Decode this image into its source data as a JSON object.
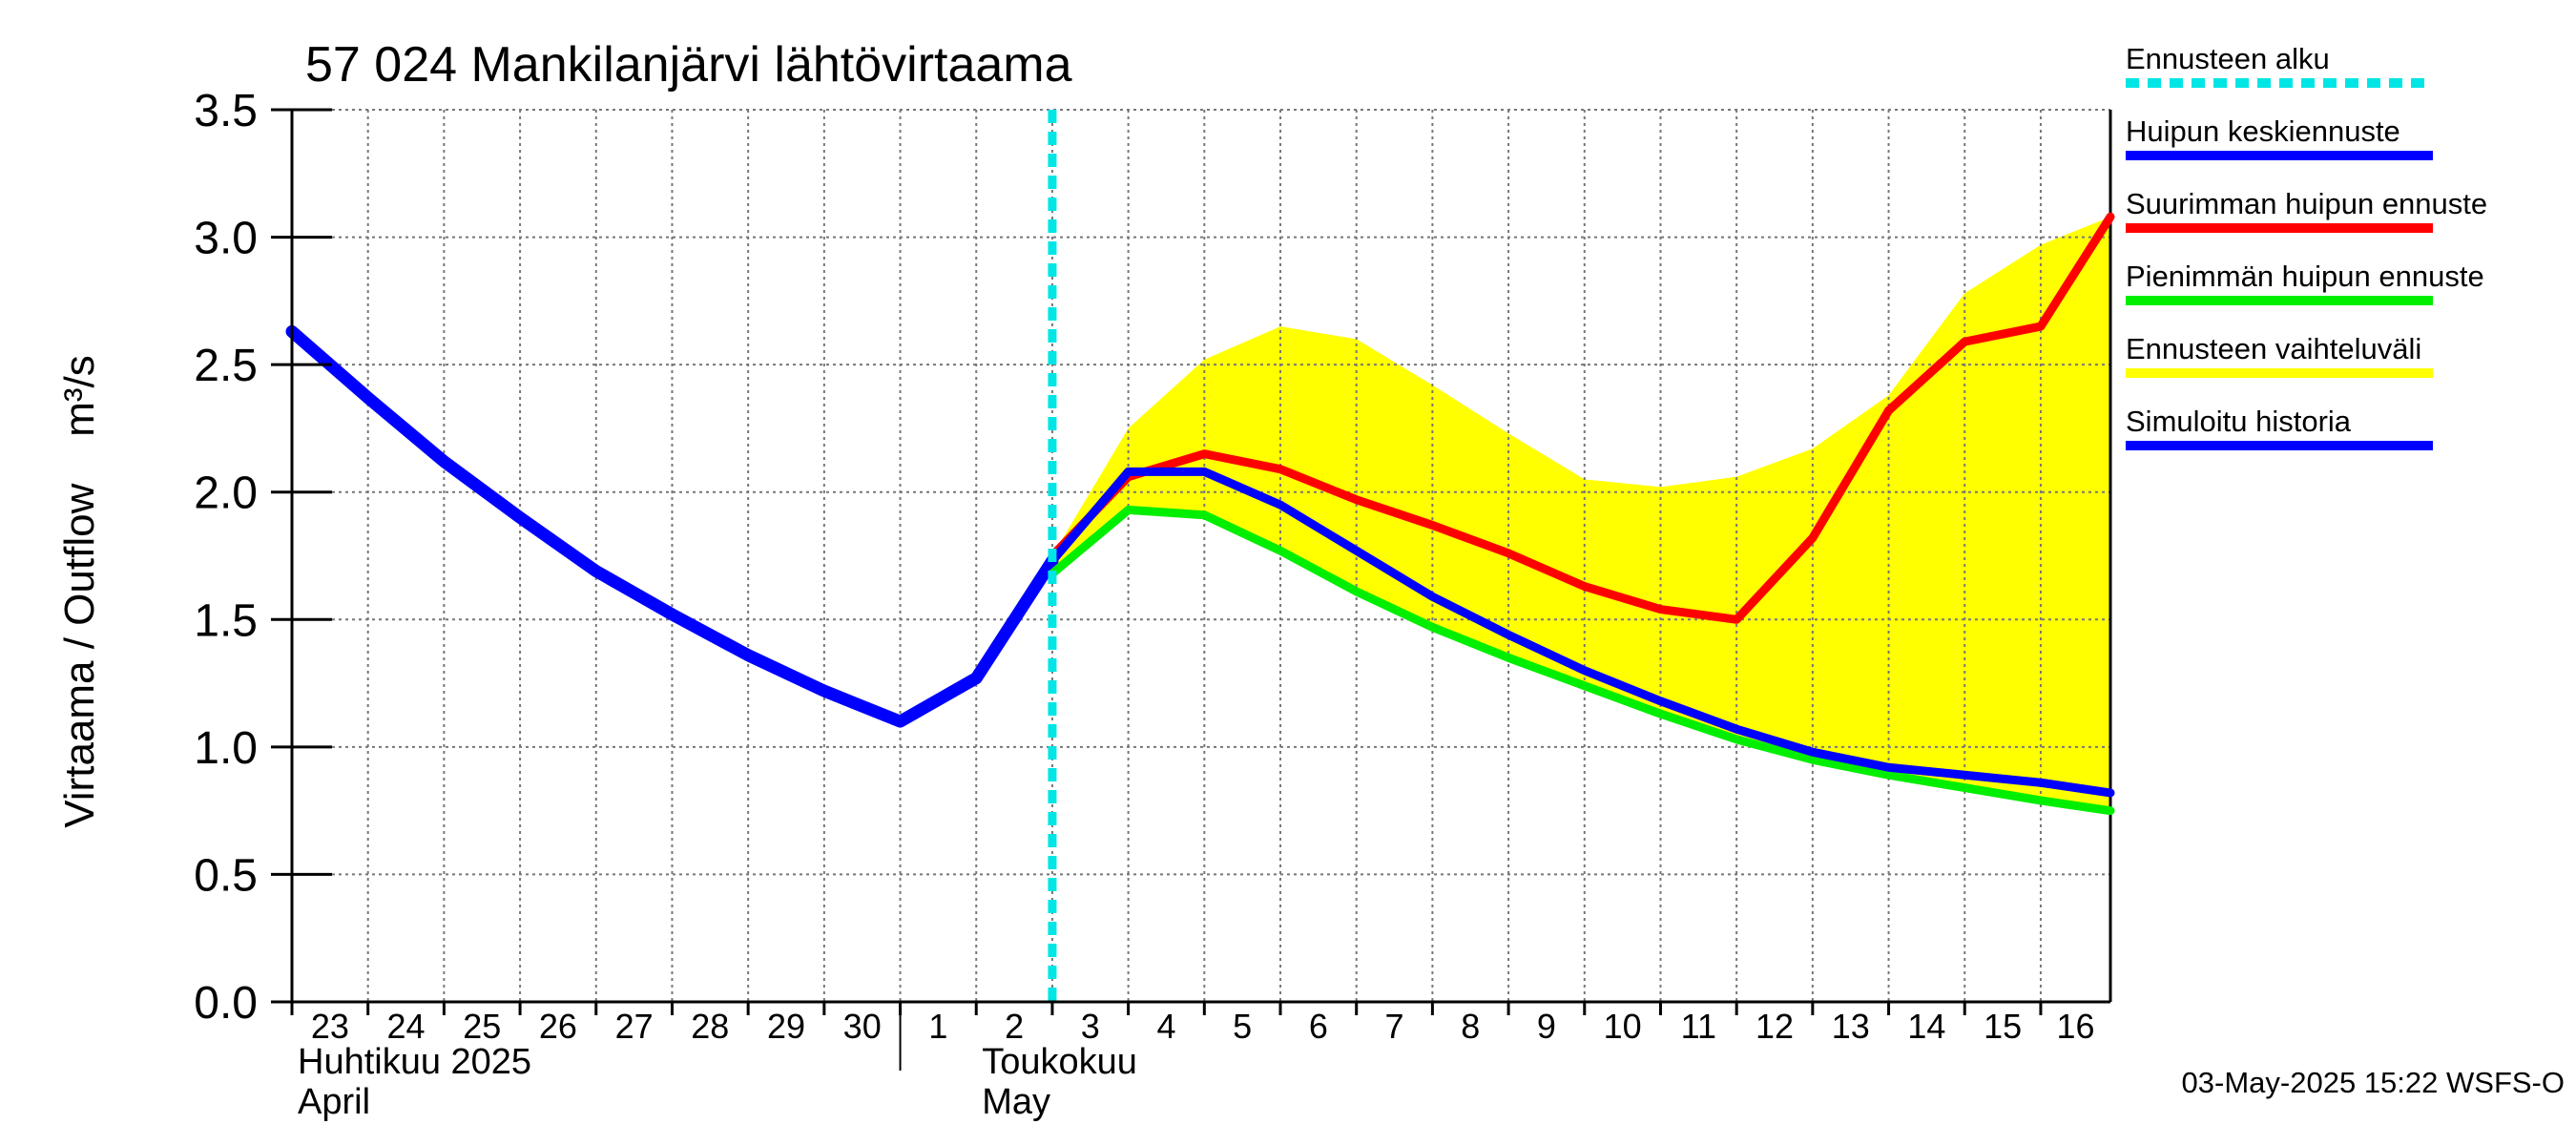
{
  "chart_data": {
    "type": "line",
    "title": "57 024 Mankilanjärvi lähtövirtaama",
    "ylabel": "Virtaama / Outflow    m³/s",
    "ylim": [
      0,
      3.5
    ],
    "yticks": [
      "0.0",
      "0.5",
      "1.0",
      "1.5",
      "2.0",
      "2.5",
      "3.0",
      "3.5"
    ],
    "xlim": [
      "2025-04-23",
      "2025-05-16T22:00"
    ],
    "x_ticks": [
      {
        "date": "2025-04-23",
        "label": "23"
      },
      {
        "date": "2025-04-24",
        "label": "24"
      },
      {
        "date": "2025-04-25",
        "label": "25"
      },
      {
        "date": "2025-04-26",
        "label": "26"
      },
      {
        "date": "2025-04-27",
        "label": "27"
      },
      {
        "date": "2025-04-28",
        "label": "28"
      },
      {
        "date": "2025-04-29",
        "label": "29"
      },
      {
        "date": "2025-04-30",
        "label": "30"
      },
      {
        "date": "2025-05-01",
        "label": "1"
      },
      {
        "date": "2025-05-02",
        "label": "2"
      },
      {
        "date": "2025-05-03",
        "label": "3"
      },
      {
        "date": "2025-05-04",
        "label": "4"
      },
      {
        "date": "2025-05-05",
        "label": "5"
      },
      {
        "date": "2025-05-06",
        "label": "6"
      },
      {
        "date": "2025-05-07",
        "label": "7"
      },
      {
        "date": "2025-05-08",
        "label": "8"
      },
      {
        "date": "2025-05-09",
        "label": "9"
      },
      {
        "date": "2025-05-10",
        "label": "10"
      },
      {
        "date": "2025-05-11",
        "label": "11"
      },
      {
        "date": "2025-05-12",
        "label": "12"
      },
      {
        "date": "2025-05-13",
        "label": "13"
      },
      {
        "date": "2025-05-14",
        "label": "14"
      },
      {
        "date": "2025-05-15",
        "label": "15"
      },
      {
        "date": "2025-05-16",
        "label": "16"
      }
    ],
    "month_labels": [
      {
        "date": "2025-04-23",
        "fi": "Huhtikuu  2025",
        "en": "April"
      },
      {
        "date": "2025-05-02",
        "fi": "Toukokuu",
        "en": "May"
      }
    ],
    "forecast_start": "2025-05-03",
    "band": {
      "name": "Ennusteen vaihteluväli",
      "color": "#ffff00",
      "x": [
        "2025-05-03",
        "2025-05-04",
        "2025-05-05",
        "2025-05-06",
        "2025-05-07",
        "2025-05-08",
        "2025-05-09",
        "2025-05-10",
        "2025-05-11",
        "2025-05-12",
        "2025-05-13",
        "2025-05-14",
        "2025-05-15",
        "2025-05-16",
        "2025-05-16T22:00"
      ],
      "upper": [
        1.75,
        2.25,
        2.52,
        2.65,
        2.6,
        2.42,
        2.23,
        2.05,
        2.02,
        2.06,
        2.17,
        2.38,
        2.78,
        2.97,
        3.08
      ],
      "lower": [
        1.68,
        1.93,
        1.91,
        1.77,
        1.61,
        1.47,
        1.35,
        1.24,
        1.13,
        1.03,
        0.95,
        0.89,
        0.84,
        0.79,
        0.75
      ]
    },
    "series": [
      {
        "name": "Simuloitu historia",
        "color": "#0000ff",
        "width": 13,
        "x": [
          "2025-04-23",
          "2025-04-24",
          "2025-04-25",
          "2025-04-26",
          "2025-04-27",
          "2025-04-28",
          "2025-04-29",
          "2025-04-30",
          "2025-05-01",
          "2025-05-02",
          "2025-05-03"
        ],
        "values": [
          2.63,
          2.37,
          2.12,
          1.9,
          1.69,
          1.52,
          1.36,
          1.22,
          1.1,
          1.27,
          1.73
        ]
      },
      {
        "name": "Pienimmän huipun ennuste",
        "color": "#00ee00",
        "width": 9,
        "x": [
          "2025-05-03",
          "2025-05-04",
          "2025-05-05",
          "2025-05-06",
          "2025-05-07",
          "2025-05-08",
          "2025-05-09",
          "2025-05-10",
          "2025-05-11",
          "2025-05-12",
          "2025-05-13",
          "2025-05-14",
          "2025-05-15",
          "2025-05-16",
          "2025-05-16T22:00"
        ],
        "values": [
          1.68,
          1.93,
          1.91,
          1.77,
          1.61,
          1.47,
          1.35,
          1.24,
          1.13,
          1.03,
          0.95,
          0.89,
          0.84,
          0.79,
          0.75
        ]
      },
      {
        "name": "Suurimman huipun ennuste",
        "color": "#ff0000",
        "width": 9,
        "x": [
          "2025-05-03",
          "2025-05-04",
          "2025-05-05",
          "2025-05-06",
          "2025-05-07",
          "2025-05-08",
          "2025-05-09",
          "2025-05-10",
          "2025-05-11",
          "2025-05-12",
          "2025-05-13",
          "2025-05-14",
          "2025-05-15",
          "2025-05-16",
          "2025-05-16T22:00"
        ],
        "values": [
          1.75,
          2.06,
          2.15,
          2.09,
          1.97,
          1.87,
          1.76,
          1.63,
          1.54,
          1.5,
          1.82,
          2.32,
          2.59,
          2.65,
          3.08
        ]
      },
      {
        "name": "Huipun keskiennuste",
        "color": "#0000ff",
        "width": 9,
        "x": [
          "2025-05-03",
          "2025-05-04",
          "2025-05-05",
          "2025-05-06",
          "2025-05-07",
          "2025-05-08",
          "2025-05-09",
          "2025-05-10",
          "2025-05-11",
          "2025-05-12",
          "2025-05-13",
          "2025-05-14",
          "2025-05-15",
          "2025-05-16",
          "2025-05-16T22:00"
        ],
        "values": [
          1.73,
          2.08,
          2.08,
          1.95,
          1.77,
          1.59,
          1.44,
          1.3,
          1.18,
          1.07,
          0.98,
          0.92,
          0.89,
          0.86,
          0.82
        ]
      }
    ],
    "legend": {
      "placement": "right",
      "entries": [
        {
          "label": "Ennusteen alku",
          "color": "#00e5e5",
          "style": "dashed"
        },
        {
          "label": "Huipun keskiennuste",
          "color": "#0000ff",
          "style": "solid"
        },
        {
          "label": "Suurimman huipun ennuste",
          "color": "#ff0000",
          "style": "solid"
        },
        {
          "label": "Pienimmän huipun ennuste",
          "color": "#00ee00",
          "style": "solid"
        },
        {
          "label": "Ennusteen vaihteluväli",
          "color": "#ffff00",
          "style": "solid"
        },
        {
          "label": "Simuloitu historia",
          "color": "#0000ff",
          "style": "solid"
        }
      ]
    },
    "grid": true,
    "timestamp": "03-May-2025 15:22 WSFS-O"
  }
}
